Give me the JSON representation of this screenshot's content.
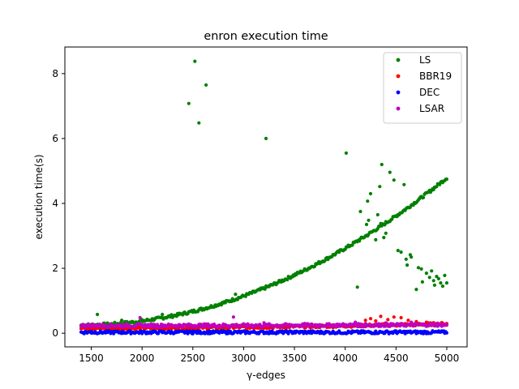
{
  "chart_data": {
    "type": "scatter",
    "title": "enron execution time",
    "xlabel": "γ-edges",
    "ylabel": "execution time(s)",
    "xlim": [
      1240,
      5200
    ],
    "ylim": [
      -0.42,
      8.82
    ],
    "xticks": [
      1500,
      2000,
      2500,
      3000,
      3500,
      4000,
      4500,
      5000
    ],
    "yticks": [
      0,
      2,
      4,
      6,
      8
    ],
    "grid": false,
    "legend_position": "top-right",
    "series": [
      {
        "name": "LS",
        "color": "#008000",
        "trend": {
          "x_range": [
            1400,
            5000
          ],
          "a": 0.25,
          "b": 3.5e-07,
          "p": 2.0
        },
        "points": [
          [
            1560,
            0.58
          ],
          [
            1800,
            0.4
          ],
          [
            2200,
            0.58
          ],
          [
            2460,
            7.08
          ],
          [
            2520,
            8.38
          ],
          [
            2560,
            6.48
          ],
          [
            2630,
            7.65
          ],
          [
            2920,
            1.2
          ],
          [
            3220,
            6.0
          ],
          [
            4010,
            5.55
          ],
          [
            4120,
            1.42
          ],
          [
            4150,
            3.75
          ],
          [
            4210,
            3.35
          ],
          [
            4220,
            4.07
          ],
          [
            4230,
            3.48
          ],
          [
            4250,
            4.3
          ],
          [
            4300,
            2.88
          ],
          [
            4320,
            3.65
          ],
          [
            4340,
            4.52
          ],
          [
            4350,
            3.38
          ],
          [
            4360,
            5.2
          ],
          [
            4380,
            2.95
          ],
          [
            4400,
            3.08
          ],
          [
            4440,
            4.96
          ],
          [
            4480,
            4.72
          ],
          [
            4520,
            2.55
          ],
          [
            4550,
            2.5
          ],
          [
            4580,
            4.58
          ],
          [
            4600,
            2.28
          ],
          [
            4610,
            2.1
          ],
          [
            4640,
            2.42
          ],
          [
            4650,
            2.35
          ],
          [
            4700,
            1.35
          ],
          [
            4720,
            2.02
          ],
          [
            4750,
            1.98
          ],
          [
            4760,
            1.58
          ],
          [
            4800,
            1.85
          ],
          [
            4830,
            1.72
          ],
          [
            4850,
            1.92
          ],
          [
            4870,
            1.62
          ],
          [
            4880,
            1.48
          ],
          [
            4900,
            1.75
          ],
          [
            4920,
            1.68
          ],
          [
            4940,
            1.55
          ],
          [
            4960,
            1.45
          ],
          [
            4980,
            1.78
          ],
          [
            5000,
            1.55
          ]
        ]
      },
      {
        "name": "BBR19",
        "color": "#ff0000",
        "trend": {
          "x_range": [
            1400,
            5000
          ],
          "a": 0.16,
          "b": 1e-08,
          "p": 2.0
        },
        "points": [
          [
            4200,
            0.4
          ],
          [
            4250,
            0.45
          ],
          [
            4300,
            0.38
          ],
          [
            4350,
            0.52
          ],
          [
            4420,
            0.42
          ],
          [
            4480,
            0.5
          ],
          [
            4550,
            0.48
          ],
          [
            4620,
            0.4
          ],
          [
            4700,
            0.36
          ],
          [
            4800,
            0.34
          ]
        ]
      },
      {
        "name": "DEC",
        "color": "#0000ff",
        "trend": {
          "x_range": [
            1400,
            5000
          ],
          "a": 0.03,
          "b": 0.0,
          "p": 1.0
        },
        "points": [
          [
            1500,
            0.06
          ],
          [
            2500,
            0.07
          ],
          [
            3500,
            0.06
          ],
          [
            4500,
            0.07
          ]
        ]
      },
      {
        "name": "LSAR",
        "color": "#bf00bf",
        "trend": {
          "x_range": [
            1400,
            5000
          ],
          "a": 0.24,
          "b": 1.5e-09,
          "p": 2.0
        },
        "points": [
          [
            1980,
            0.48
          ],
          [
            2900,
            0.5
          ],
          [
            3200,
            0.32
          ],
          [
            3600,
            0.3
          ],
          [
            4100,
            0.34
          ],
          [
            4200,
            0.3
          ],
          [
            4400,
            0.32
          ],
          [
            4650,
            0.34
          ],
          [
            4900,
            0.3
          ]
        ]
      }
    ]
  }
}
